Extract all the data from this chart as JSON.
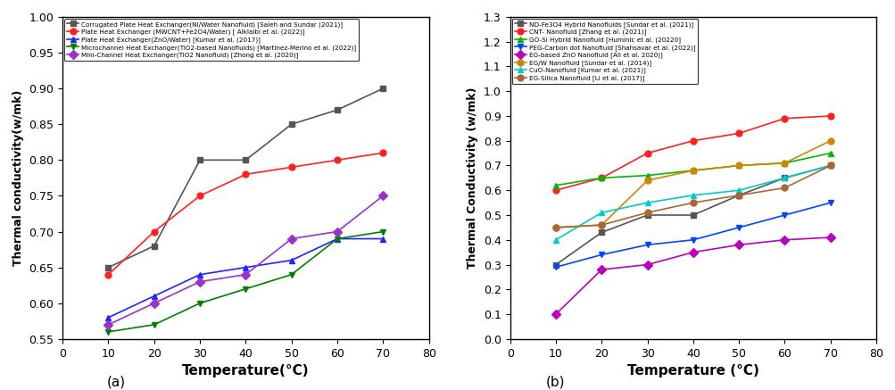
{
  "temp_a": [
    10,
    20,
    30,
    40,
    50,
    60,
    70
  ],
  "series_a": [
    {
      "label": "Corrugated Plate Heat Exchanger(Ni/Water Nanofluid) [Saleh and Sundar (2021)]",
      "color": "#555555",
      "marker": "s",
      "markerface": "#555555",
      "values": [
        0.65,
        0.68,
        0.8,
        0.8,
        0.85,
        0.87,
        0.9
      ]
    },
    {
      "label": "Plate Heat Exchanger (MWCNT+Fe2O4/Water) [ Alklaibi et al. (2022)]",
      "color": "#ff2020",
      "marker": "o",
      "markerface": "#ff2020",
      "values": [
        0.64,
        0.7,
        0.75,
        0.78,
        0.79,
        0.8,
        0.81
      ]
    },
    {
      "label": "Plate Heat Exchanger(ZnO/Water) [Kumar et al. (2017)]",
      "color": "#2222ff",
      "marker": "^",
      "markerface": "#2222ff",
      "values": [
        0.58,
        0.61,
        0.64,
        0.65,
        0.66,
        0.69,
        0.69
      ]
    },
    {
      "label": "Microchannel Heat Exchanger(TiO2-based Nanofluids) [Martinez-Merino et al. (2022)]",
      "color": "#008000",
      "marker": "v",
      "markerface": "#008000",
      "values": [
        0.56,
        0.57,
        0.6,
        0.62,
        0.64,
        0.69,
        0.7
      ]
    },
    {
      "label": "Mini-Channel Heat Exchanger(TiO2 Nanofluid) [Zhong et al. (2020)]",
      "color": "#9933cc",
      "marker": "D",
      "markerface": "#9933cc",
      "values": [
        0.57,
        0.6,
        0.63,
        0.64,
        0.69,
        0.7,
        0.75
      ]
    }
  ],
  "ylim_a": [
    0.55,
    1.0
  ],
  "yticks_a": [
    0.55,
    0.6,
    0.65,
    0.7,
    0.75,
    0.8,
    0.85,
    0.9,
    0.95,
    1.0
  ],
  "ylabel_a": "Thermal conductivity(w/mk)",
  "xlabel_a": "Temperature(°C)",
  "label_a": "(a)",
  "temp_b": [
    10,
    20,
    30,
    40,
    50,
    60,
    70
  ],
  "series_b": [
    {
      "label": "ND-Fe3O4 Hybrid Nanofluids [Sundar et al. (2021)]",
      "color": "#555555",
      "marker": "s",
      "values": [
        0.3,
        0.43,
        0.5,
        0.5,
        0.58,
        0.65,
        0.7
      ]
    },
    {
      "label": "CNT- Nanofluid [Zhang et al. (2021)]",
      "color": "#ff2020",
      "marker": "o",
      "values": [
        0.6,
        0.65,
        0.75,
        0.8,
        0.83,
        0.89,
        0.9
      ]
    },
    {
      "label": "GO-Si Hybrid Nanofluid [Huminic et al. (20220]",
      "color": "#00bb00",
      "marker": "^",
      "values": [
        0.62,
        0.65,
        0.66,
        0.68,
        0.7,
        0.71,
        0.75
      ]
    },
    {
      "label": "PEG-Carbon dot Nanofluid [Shahsavar et al. (2022)]",
      "color": "#0044ff",
      "marker": "v",
      "values": [
        0.29,
        0.34,
        0.38,
        0.4,
        0.45,
        0.5,
        0.55
      ]
    },
    {
      "label": "EG-based ZnO Nanofluid [Ali et al. 2020)]",
      "color": "#bb00bb",
      "marker": "D",
      "values": [
        0.1,
        0.28,
        0.3,
        0.35,
        0.38,
        0.4,
        0.41
      ]
    },
    {
      "label": "EG/W Nanofluid [Sundar et al. (2014)]",
      "color": "#cc8800",
      "marker": "o",
      "values": [
        0.45,
        0.46,
        0.64,
        0.68,
        0.7,
        0.71,
        0.8
      ]
    },
    {
      "label": "CuO-Nanofluid [Kumar et al. (2021)]",
      "color": "#00cccc",
      "marker": "^",
      "values": [
        0.4,
        0.51,
        0.55,
        0.58,
        0.6,
        0.65,
        0.7
      ]
    },
    {
      "label": "EG-Silica Nanofluid [Li et al. (2017)]",
      "color": "#aa6633",
      "marker": "o",
      "values": [
        0.45,
        0.46,
        0.51,
        0.55,
        0.58,
        0.61,
        0.7
      ]
    }
  ],
  "ylim_b": [
    0.0,
    1.3
  ],
  "yticks_b": [
    0.0,
    0.1,
    0.2,
    0.3,
    0.4,
    0.5,
    0.6,
    0.7,
    0.8,
    0.9,
    1.0,
    1.1,
    1.2,
    1.3
  ],
  "ylabel_b": "Thermal Conductivity (w/mk)",
  "xlabel_b": "Temperature (°C)",
  "label_b": "(b)"
}
